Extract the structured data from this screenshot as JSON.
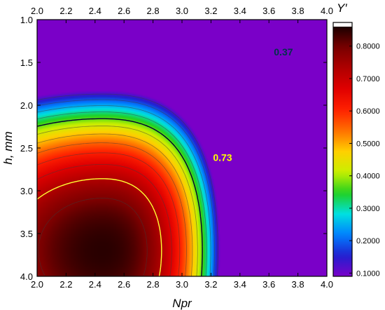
{
  "chart_data": {
    "type": "heatmap",
    "xlabel": "Npr",
    "ylabel": "h, mm",
    "colorbar_label": "Y′",
    "xlim": [
      2.0,
      4.0
    ],
    "ylim": [
      1.0,
      4.0
    ],
    "y_inverted": true,
    "x_ticks": [
      "2.0",
      "2.2",
      "2.4",
      "2.6",
      "2.8",
      "3.0",
      "3.2",
      "3.4",
      "3.6",
      "3.8",
      "4.0"
    ],
    "y_ticks": [
      "1.0",
      "1.5",
      "2.0",
      "2.5",
      "3.0",
      "3.5",
      "4.0"
    ],
    "colorbar_range": [
      0.09,
      0.86
    ],
    "colorbar_ticks": [
      "0.1000",
      "0.2000",
      "0.3000",
      "0.4000",
      "0.5000",
      "0.6000",
      "0.7000",
      "0.8000"
    ],
    "colormap": [
      "#1a0000",
      "#7a0000",
      "#b00000",
      "#e00000",
      "#ff2000",
      "#ff7000",
      "#ffd000",
      "#c8f000",
      "#20d020",
      "#00e0e0",
      "#0080ff",
      "#2020d0",
      "#7a00c8",
      "#ffffff"
    ],
    "peak": {
      "x": 2.45,
      "y": 3.7,
      "value": 0.85
    },
    "contour_levels": [
      0.37,
      0.73
    ],
    "contour_labels": [
      {
        "text": "0.37",
        "x": 3.7,
        "y": 1.42,
        "color": "#00324a"
      },
      {
        "text": "0.73",
        "x": 3.28,
        "y": 2.65,
        "color": "#ffff00"
      }
    ],
    "grid": false
  }
}
